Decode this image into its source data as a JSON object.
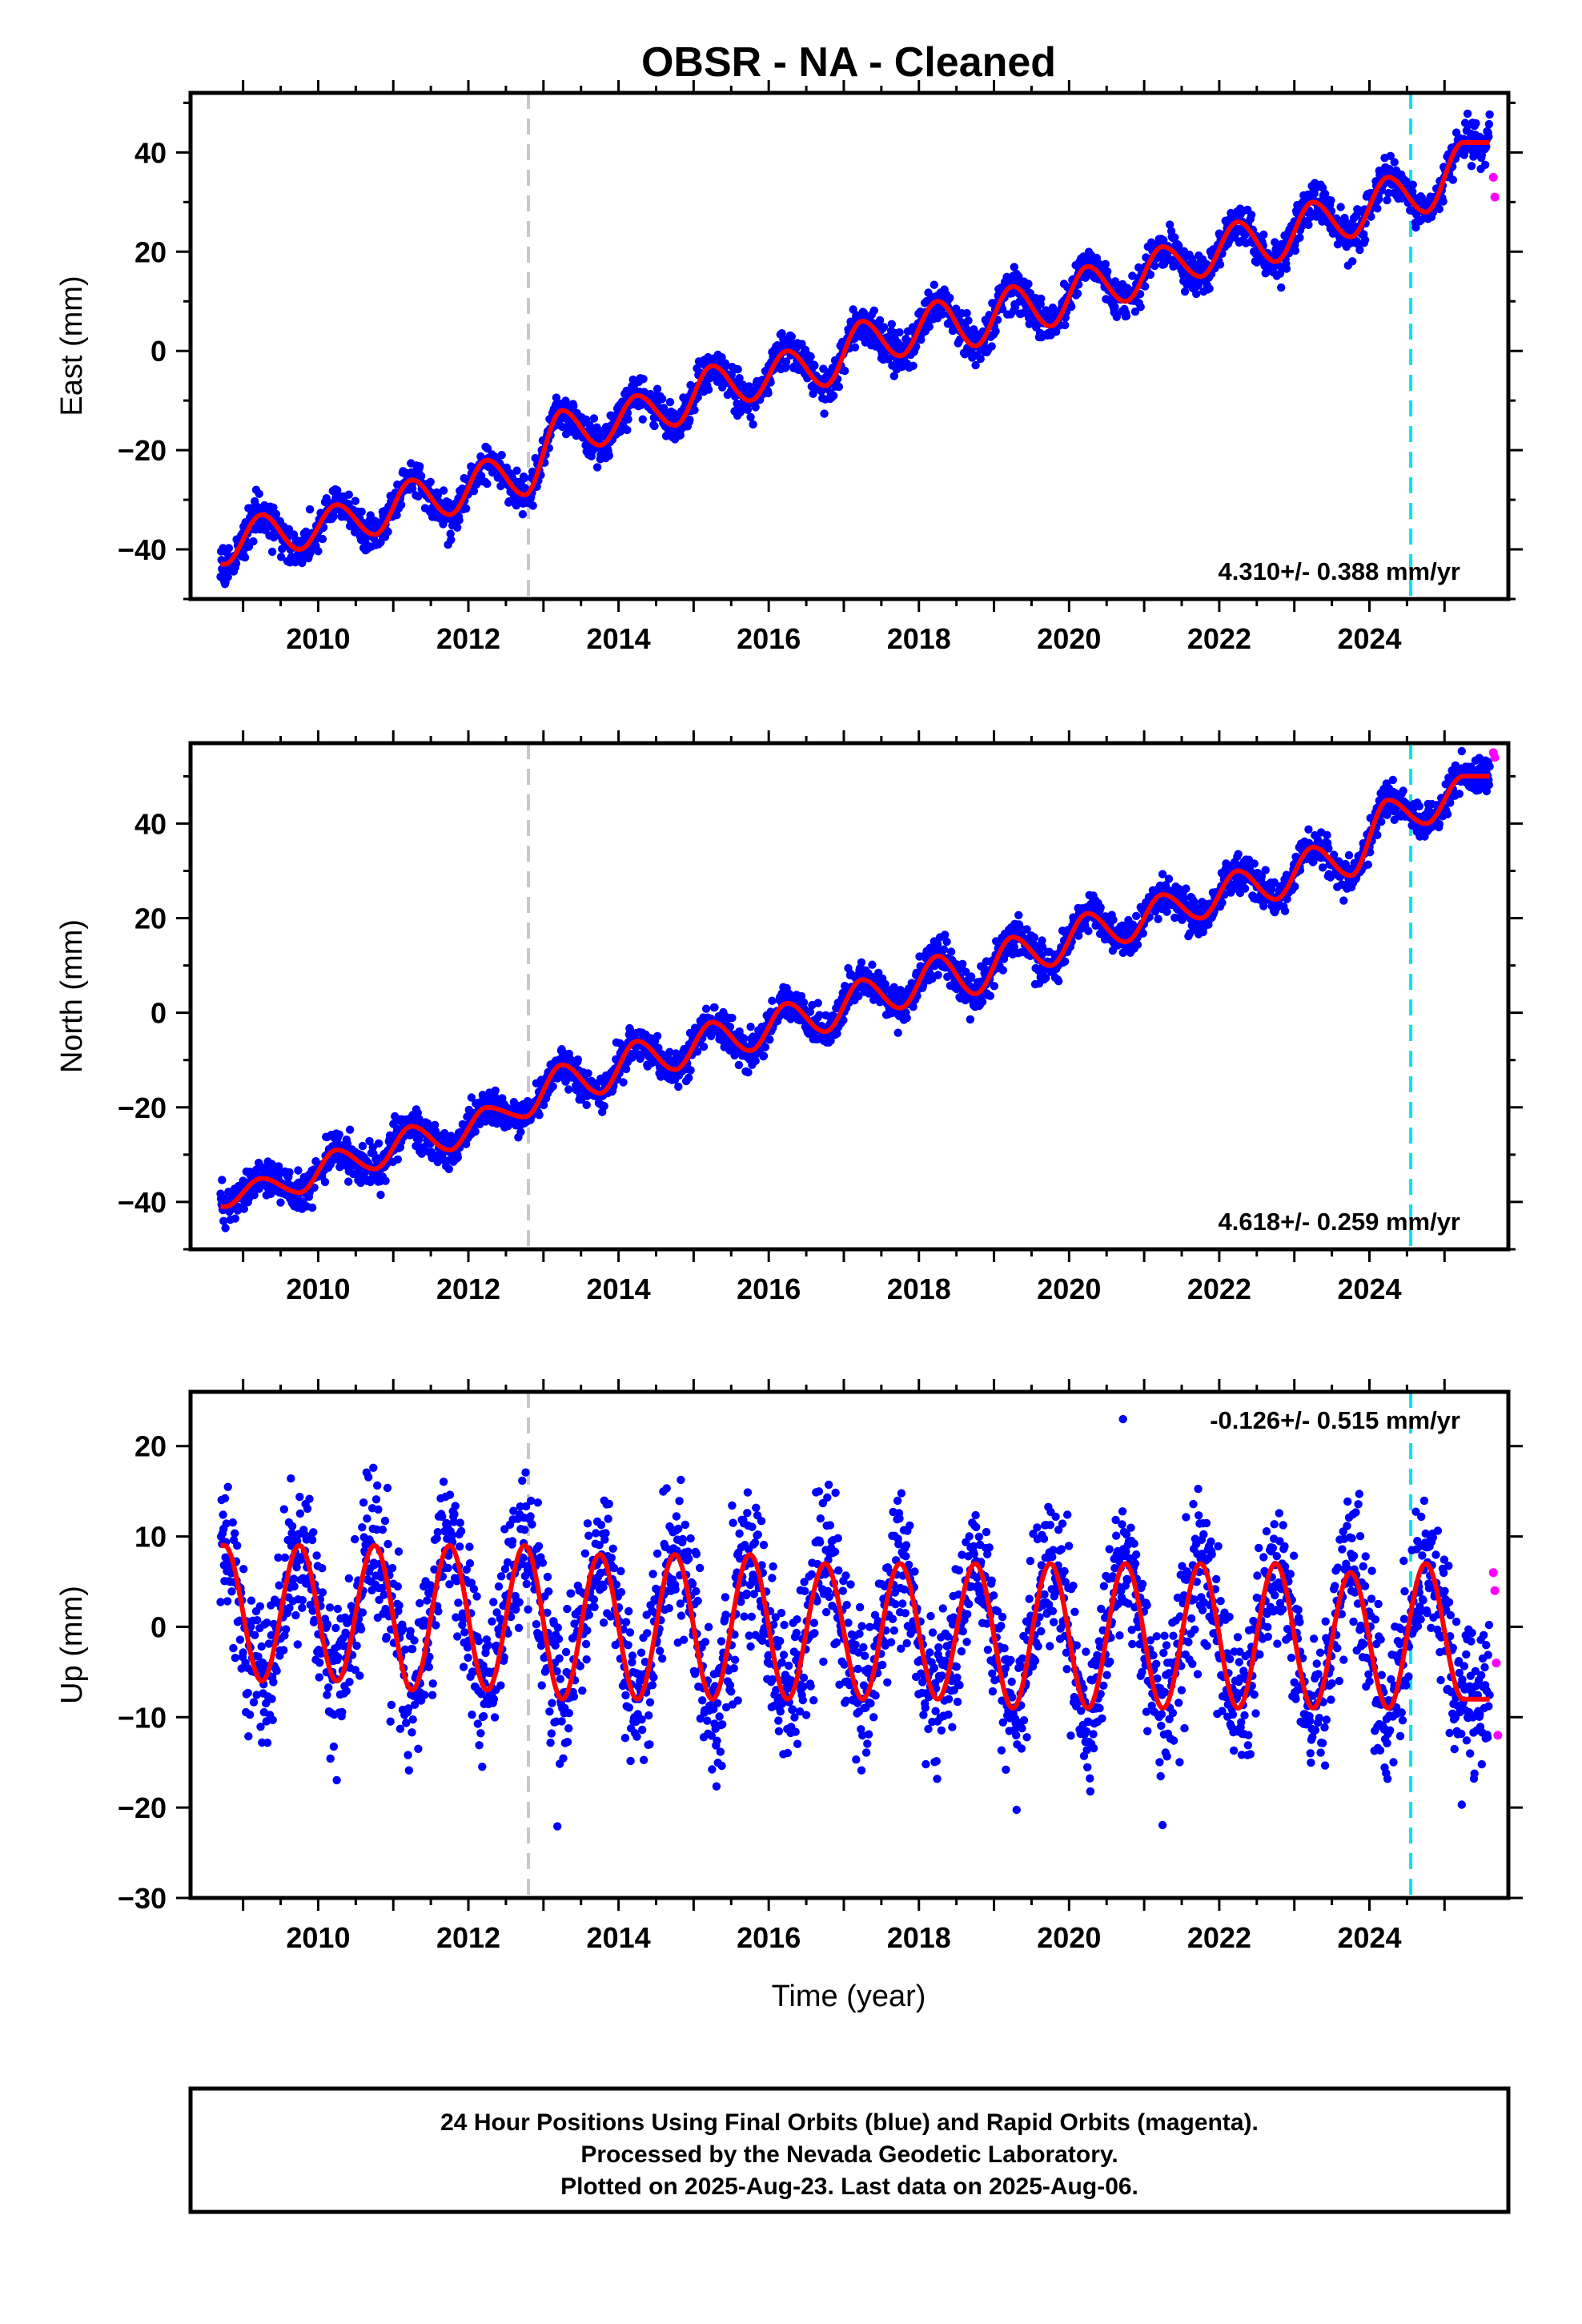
{
  "title": "OBSR  - NA - Cleaned",
  "xlabel": "Time (year)",
  "footer": [
    "24 Hour Positions Using Final Orbits (blue) and Rapid Orbits (magenta).",
    "Processed by the Nevada Geodetic Laboratory.",
    "Plotted on 2025-Aug-23. Last data on 2025-Aug-06."
  ],
  "colors": {
    "final": "#0000ff",
    "rapid": "#ff00ff",
    "model": "#ff0000",
    "equipment_change": "#c8c8c8",
    "event": "#00e5ee"
  },
  "chart_data": [
    {
      "type": "scatter",
      "name": "east",
      "ylabel": "East (mm)",
      "xlim": [
        2008.3,
        2025.85
      ],
      "ylim": [
        -50,
        52
      ],
      "xticks": [
        2010,
        2012,
        2014,
        2016,
        2018,
        2020,
        2022,
        2024
      ],
      "yticks": [
        -40,
        -20,
        0,
        20,
        40
      ],
      "rate_label": "4.310+/- 0.388 mm/yr",
      "rate_position": "bottom-right",
      "start": 2008.7,
      "end": 2025.6,
      "x": [
        2008.75,
        2009.25,
        2009.75,
        2010.25,
        2010.75,
        2011.25,
        2011.75,
        2012.25,
        2012.75,
        2013.25,
        2013.75,
        2014.25,
        2014.75,
        2015.25,
        2015.75,
        2016.25,
        2016.75,
        2017.25,
        2017.75,
        2018.25,
        2018.75,
        2019.25,
        2019.75,
        2020.25,
        2020.75,
        2021.25,
        2021.75,
        2022.25,
        2022.75,
        2023.25,
        2023.75,
        2024.25,
        2024.75,
        2025.25
      ],
      "y": [
        -43,
        -33,
        -40,
        -31,
        -37,
        -26,
        -33,
        -22,
        -29,
        -12,
        -19,
        -9,
        -15,
        -3,
        -10,
        0,
        -7,
        6,
        -1,
        10,
        1,
        13,
        5,
        17,
        10,
        21,
        15,
        26,
        18,
        30,
        23,
        35,
        28,
        42
      ],
      "rapid_y": [
        35,
        31
      ],
      "equipment_change": 2012.8,
      "event": 2024.55
    },
    {
      "type": "scatter",
      "name": "north",
      "ylabel": "North (mm)",
      "xlim": [
        2008.3,
        2025.85
      ],
      "ylim": [
        -50,
        57
      ],
      "xticks": [
        2010,
        2012,
        2014,
        2016,
        2018,
        2020,
        2022,
        2024
      ],
      "yticks": [
        -40,
        -20,
        0,
        20,
        40
      ],
      "rate_label": "4.618+/- 0.259 mm/yr",
      "rate_position": "bottom-right",
      "start": 2008.7,
      "end": 2025.6,
      "x": [
        2008.75,
        2009.25,
        2009.75,
        2010.25,
        2010.75,
        2011.25,
        2011.75,
        2012.25,
        2012.75,
        2013.25,
        2013.75,
        2014.25,
        2014.75,
        2015.25,
        2015.75,
        2016.25,
        2016.75,
        2017.25,
        2017.75,
        2018.25,
        2018.75,
        2019.25,
        2019.75,
        2020.25,
        2020.75,
        2021.25,
        2021.75,
        2022.25,
        2022.75,
        2023.25,
        2023.75,
        2024.25,
        2024.75,
        2025.25
      ],
      "y": [
        -41,
        -35,
        -38,
        -29,
        -33,
        -24,
        -29,
        -20,
        -22,
        -11,
        -17,
        -6,
        -12,
        -2,
        -8,
        2,
        -4,
        7,
        1,
        12,
        4,
        16,
        10,
        21,
        15,
        25,
        20,
        30,
        24,
        35,
        29,
        45,
        40,
        50
      ],
      "rapid_y": [
        55,
        54
      ],
      "equipment_change": 2012.8,
      "event": 2024.55
    },
    {
      "type": "scatter",
      "name": "up",
      "ylabel": "Up (mm)",
      "xlim": [
        2008.3,
        2025.85
      ],
      "ylim": [
        -30,
        26
      ],
      "xticks": [
        2010,
        2012,
        2014,
        2016,
        2018,
        2020,
        2022,
        2024
      ],
      "yticks": [
        -30,
        -20,
        -10,
        0,
        10,
        20
      ],
      "rate_label": "-0.126+/- 0.515 mm/yr",
      "rate_position": "top-right",
      "start": 2008.7,
      "end": 2025.6,
      "x": [
        2008.75,
        2009.25,
        2009.75,
        2010.25,
        2010.75,
        2011.25,
        2011.75,
        2012.25,
        2012.75,
        2013.25,
        2013.75,
        2014.25,
        2014.75,
        2015.25,
        2015.75,
        2016.25,
        2016.75,
        2017.25,
        2017.75,
        2018.25,
        2018.75,
        2019.25,
        2019.75,
        2020.25,
        2020.75,
        2021.25,
        2021.75,
        2022.25,
        2022.75,
        2023.25,
        2023.75,
        2024.25,
        2024.75,
        2025.25
      ],
      "y": [
        9,
        -6,
        9,
        -6,
        9,
        -7,
        9,
        -7,
        9,
        -8,
        8,
        -8,
        8,
        -8,
        8,
        -8,
        7,
        -8,
        7,
        -8,
        7,
        -9,
        7,
        -9,
        7,
        -9,
        7,
        -9,
        7,
        -9,
        6,
        -9,
        7,
        -8
      ],
      "rapid_y": [
        6,
        4,
        -4,
        -12
      ],
      "equipment_change": 2012.8,
      "event": 2024.55
    }
  ]
}
